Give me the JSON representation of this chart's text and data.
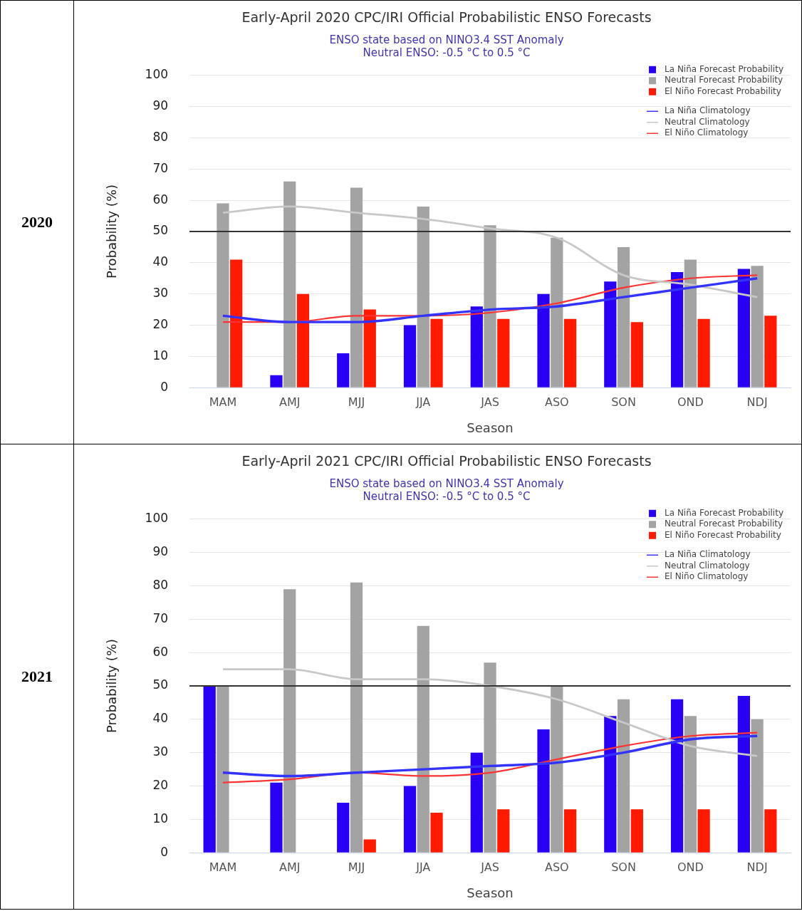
{
  "chart_data": [
    {
      "type": "bar",
      "title": "Early-April 2020 CPC/IRI Official Probabilistic ENSO Forecasts",
      "subtitle": "ENSO state based on NINO3.4 SST Anomaly\nNeutral ENSO: -0.5 °C to 0.5 °C",
      "xlabel": "Season",
      "ylabel": "Probability (%)",
      "annotations": [
        "2020"
      ],
      "categories": [
        "MAM",
        "AMJ",
        "MJJ",
        "JJA",
        "JAS",
        "ASO",
        "SON",
        "OND",
        "NDJ"
      ],
      "series": [
        {
          "name": "La Niña Forecast Probability",
          "color": "#2a00f5",
          "values": [
            0,
            4,
            11,
            20,
            26,
            30,
            34,
            37,
            38
          ]
        },
        {
          "name": "Neutral Forecast Probability",
          "color": "#a3a3a3",
          "values": [
            59,
            66,
            64,
            58,
            52,
            48,
            45,
            41,
            39
          ]
        },
        {
          "name": "El Niño Forecast Probability",
          "color": "#ff1a00",
          "values": [
            41,
            30,
            25,
            22,
            22,
            22,
            21,
            22,
            23
          ]
        },
        {
          "name": "La Niña Climatology",
          "type": "line",
          "color": "#3333ff",
          "values": [
            23,
            21,
            21,
            23,
            25,
            26,
            29,
            32,
            35
          ]
        },
        {
          "name": "Neutral Climatology",
          "type": "line",
          "color": "#c8c8c8",
          "values": [
            56,
            58,
            56,
            54,
            51,
            48,
            36,
            33,
            29
          ]
        },
        {
          "name": "El Niño Climatology",
          "type": "line",
          "color": "#ff3333",
          "values": [
            21,
            21,
            23,
            23,
            24,
            27,
            32,
            35,
            36
          ]
        }
      ],
      "ylim": [
        0,
        100
      ],
      "yticks": [
        0,
        10,
        20,
        30,
        40,
        50,
        60,
        70,
        80,
        90,
        100
      ],
      "grid": "y",
      "legend": "top right",
      "marker": "none",
      "ref_lines": [
        {
          "axis": "y",
          "value": 50,
          "color": "#333333"
        }
      ]
    },
    {
      "type": "bar",
      "title": "Early-April 2021 CPC/IRI Official Probabilistic ENSO Forecasts",
      "subtitle": "ENSO state based on NINO3.4 SST Anomaly\nNeutral ENSO: -0.5 °C to 0.5 °C",
      "xlabel": "Season",
      "ylabel": "Probability (%)",
      "annotations": [
        "2021"
      ],
      "categories": [
        "MAM",
        "AMJ",
        "MJJ",
        "JJA",
        "JAS",
        "ASO",
        "SON",
        "OND",
        "NDJ"
      ],
      "series": [
        {
          "name": "La Niña Forecast Probability",
          "color": "#2a00f5",
          "values": [
            50,
            21,
            15,
            20,
            30,
            37,
            41,
            46,
            47
          ]
        },
        {
          "name": "Neutral Forecast Probability",
          "color": "#a3a3a3",
          "values": [
            50,
            79,
            81,
            68,
            57,
            50,
            46,
            41,
            40
          ]
        },
        {
          "name": "El Niño Forecast Probability",
          "color": "#ff1a00",
          "values": [
            0,
            0,
            4,
            12,
            13,
            13,
            13,
            13,
            13
          ]
        },
        {
          "name": "La Niña Climatology",
          "type": "line",
          "color": "#3333ff",
          "values": [
            24,
            23,
            24,
            25,
            26,
            27,
            30,
            34,
            35
          ]
        },
        {
          "name": "Neutral Climatology",
          "type": "line",
          "color": "#c8c8c8",
          "values": [
            55,
            55,
            52,
            52,
            50,
            46,
            39,
            32,
            29
          ]
        },
        {
          "name": "El Niño Climatology",
          "type": "line",
          "color": "#ff3333",
          "values": [
            21,
            22,
            24,
            23,
            24,
            28,
            32,
            35,
            36
          ]
        }
      ],
      "ylim": [
        0,
        100
      ],
      "yticks": [
        0,
        10,
        20,
        30,
        40,
        50,
        60,
        70,
        80,
        90,
        100
      ],
      "grid": "y",
      "legend": "top right",
      "marker": "none",
      "ref_lines": [
        {
          "axis": "y",
          "value": 50,
          "color": "#333333"
        }
      ]
    }
  ]
}
